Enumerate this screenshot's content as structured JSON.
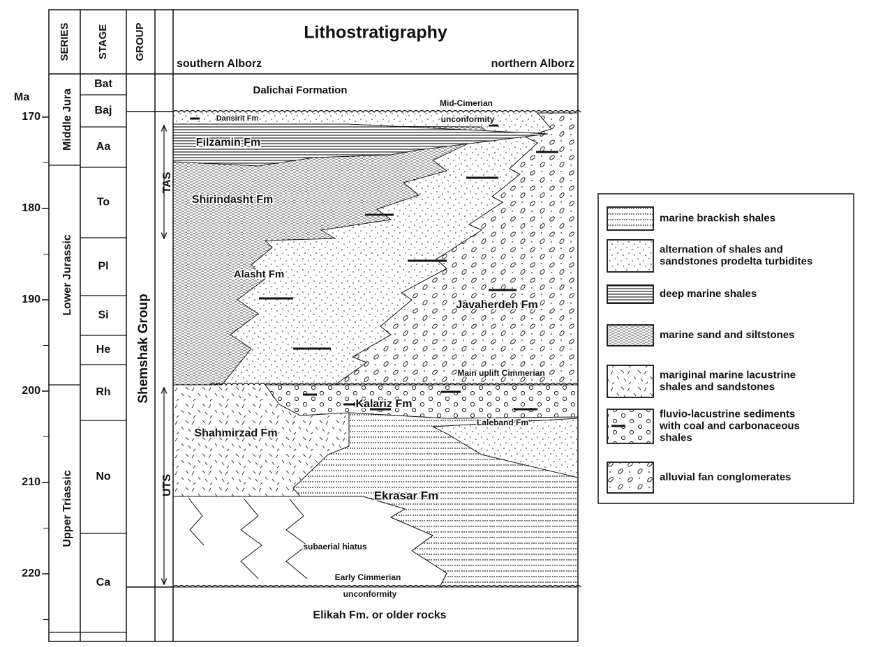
{
  "header": {
    "title": "Lithostratigraphy",
    "left": "southern Alborz",
    "right": "northern Alborz"
  },
  "columns": {
    "series": "SERIES",
    "stage": "STAGE",
    "group": "GROUP"
  },
  "age_axis": {
    "unit": "Ma",
    "ticks": [
      170,
      180,
      190,
      200,
      210,
      220
    ]
  },
  "series": [
    "Middle Jura",
    "Lower Jurassic",
    "Upper Triassic"
  ],
  "stages": [
    "Bat",
    "Baj",
    "Aa",
    "To",
    "Pl",
    "Si",
    "He",
    "Rh",
    "No",
    "Ca"
  ],
  "group": "Shemshak Group",
  "sequences": [
    "TAS",
    "UTS"
  ],
  "formations": [
    "Dalichai Formation",
    "Dansirit Fm",
    "Filzamin Fm",
    "Shirindasht Fm",
    "Alasht Fm",
    "Javaherdeh Fm",
    "Kalariz Fm",
    "Laleband Fm",
    "Shahmirzad Fm",
    "Ekrasar Fm",
    "Elikah Fm. or older rocks"
  ],
  "annotations": [
    "Mid-Cimerian",
    "unconformity",
    "Main uplift Cimmerian",
    "subaerial hiatus",
    "Early Cimmerian",
    "unconformity"
  ],
  "legend": [
    {
      "label": [
        "marine brackish shales"
      ]
    },
    {
      "label": [
        "alternation of shales and",
        "sandstones prodelta turbidites"
      ]
    },
    {
      "label": [
        "deep marine shales"
      ]
    },
    {
      "label": [
        "marine sand and siltstones"
      ]
    },
    {
      "label": [
        "mariginal marine lacustrine",
        "shales and sandstones"
      ]
    },
    {
      "label": [
        "fluvio-lacustrine sediments",
        "with coal and carbonaceous",
        "shales"
      ]
    },
    {
      "label": [
        "alluvial fan conglomerates"
      ]
    }
  ]
}
